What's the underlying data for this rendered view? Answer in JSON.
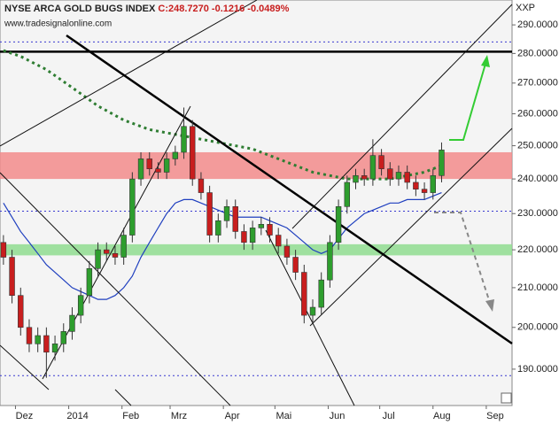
{
  "chart_data": {
    "type": "candlestick",
    "title": "NYSE ARCA GOLD BUGS INDEX",
    "quote": "C:248.7270 -0.1216 -0.0489%",
    "source": "www.tradesignalonline.com",
    "symbol": "XXP",
    "log_scale": true,
    "ylim": [
      181.7,
      299
    ],
    "yticks": [
      {
        "value": 190,
        "label": "190.0000"
      },
      {
        "value": 200,
        "label": "200.0000"
      },
      {
        "value": 210,
        "label": "210.0000"
      },
      {
        "value": 220,
        "label": "220.0000"
      },
      {
        "value": 230,
        "label": "230.0000"
      },
      {
        "value": 240,
        "label": "240.0000"
      },
      {
        "value": 250,
        "label": "250.0000"
      },
      {
        "value": 260,
        "label": "260.0000"
      },
      {
        "value": 270,
        "label": "270.0000"
      },
      {
        "value": 280,
        "label": "280.0000"
      },
      {
        "value": 290,
        "label": "290.0000"
      }
    ],
    "xlim": [
      0,
      298
    ],
    "xticks": [
      {
        "value": 9,
        "label": "Dez"
      },
      {
        "value": 40,
        "label": "2014"
      },
      {
        "value": 71,
        "label": "Feb"
      },
      {
        "value": 99,
        "label": "Mrz"
      },
      {
        "value": 130,
        "label": "Apr"
      },
      {
        "value": 160,
        "label": "Mai"
      },
      {
        "value": 191,
        "label": "Jun"
      },
      {
        "value": 221,
        "label": "Jul"
      },
      {
        "value": 252,
        "label": "Aug"
      },
      {
        "value": 283,
        "label": "Sep"
      }
    ],
    "x": [
      2,
      7,
      12,
      17,
      22,
      27,
      32,
      37,
      42,
      47,
      52,
      57,
      62,
      67,
      72,
      77,
      82,
      87,
      92,
      97,
      102,
      107,
      112,
      117,
      122,
      127,
      132,
      137,
      142,
      147,
      152,
      157,
      162,
      167,
      172,
      177,
      182,
      187,
      192,
      197,
      202,
      207,
      212,
      217,
      222,
      227,
      232,
      237,
      242,
      247,
      252,
      257
    ],
    "open": [
      222,
      218,
      208,
      200,
      196,
      198,
      194,
      196,
      199,
      203,
      208,
      215,
      220,
      219,
      218,
      224,
      240,
      246,
      243,
      242,
      246,
      248,
      256,
      240,
      236,
      224,
      228,
      232,
      225,
      222,
      226,
      227,
      224,
      221,
      218,
      214,
      203,
      205,
      212,
      222,
      232,
      239,
      241,
      240,
      247,
      243,
      240,
      242,
      239,
      237,
      236,
      241
    ],
    "high": [
      224,
      220,
      210,
      202,
      200,
      200,
      198,
      201,
      205,
      210,
      217,
      222,
      222,
      221,
      226,
      242,
      248,
      248,
      245,
      248,
      250,
      262,
      258,
      242,
      238,
      230,
      234,
      234,
      227,
      228,
      229,
      229,
      226,
      223,
      220,
      216,
      207,
      214,
      224,
      234,
      241,
      243,
      243,
      252,
      249,
      245,
      244,
      244,
      241,
      239,
      243,
      251
    ],
    "low": [
      216,
      206,
      198,
      194,
      194,
      188,
      192,
      194,
      197,
      201,
      206,
      213,
      217,
      216,
      216,
      222,
      238,
      241,
      240,
      240,
      244,
      246,
      238,
      234,
      222,
      222,
      226,
      223,
      220,
      220,
      224,
      222,
      219,
      216,
      212,
      201,
      201,
      203,
      210,
      220,
      230,
      237,
      238,
      238,
      241,
      238,
      238,
      237,
      235,
      234,
      234,
      239
    ],
    "close": [
      218,
      208,
      200,
      196,
      198,
      194,
      196,
      199,
      203,
      208,
      215,
      220,
      219,
      218,
      224,
      240,
      246,
      243,
      242,
      246,
      248,
      256,
      240,
      236,
      224,
      228,
      232,
      225,
      222,
      226,
      227,
      224,
      221,
      218,
      214,
      203,
      205,
      212,
      222,
      232,
      239,
      241,
      240,
      247,
      243,
      240,
      242,
      239,
      237,
      236,
      241,
      248.7
    ],
    "up_color": "#2e9e2e",
    "down_color": "#c81e1e",
    "series": [
      {
        "color": "#1f3fbf",
        "dashed": false,
        "values": [
          233,
          229,
          225,
          222,
          219,
          216,
          214,
          212,
          210,
          209,
          208,
          207,
          207,
          208,
          210,
          213,
          218,
          222,
          226,
          230,
          233,
          234,
          234,
          233,
          232,
          231,
          230,
          229,
          229,
          229,
          229,
          228,
          227,
          226,
          224,
          222,
          220,
          219,
          220,
          223,
          226,
          228,
          230,
          231,
          232,
          233,
          233,
          234,
          234,
          234,
          235,
          236
        ]
      },
      {
        "color": "#2e7d32",
        "dashed": true,
        "values": [
          281,
          280,
          279,
          277.5,
          276,
          274.5,
          272.5,
          270.5,
          268.5,
          266.5,
          264.5,
          262.5,
          261,
          259.5,
          258,
          257,
          256,
          255,
          254.5,
          254,
          253.5,
          253,
          252.5,
          252,
          251.5,
          251,
          250.5,
          250,
          249.5,
          249,
          248,
          247,
          246,
          245,
          244,
          243,
          242,
          241.5,
          241,
          240.5,
          240,
          240,
          240,
          240,
          240,
          240,
          240.5,
          241,
          241.5,
          242,
          243,
          244
        ]
      }
    ],
    "zones": [
      {
        "from": 240,
        "to": 248,
        "color": "#f28b8b"
      },
      {
        "from": 218.5,
        "to": 221.5,
        "color": "#8fdc8f"
      }
    ],
    "levels": [
      {
        "value": 280.6,
        "color": "#000000",
        "width": 2.5,
        "dashed": false
      },
      {
        "value": 284,
        "color": "#3a3ad0",
        "width": 1,
        "dashed": true
      },
      {
        "value": 230.7,
        "color": "#3a3ad0",
        "width": 1,
        "dashed": true
      },
      {
        "value": 188.5,
        "color": "#3a3ad0",
        "width": 1,
        "dashed": true
      }
    ]
  }
}
